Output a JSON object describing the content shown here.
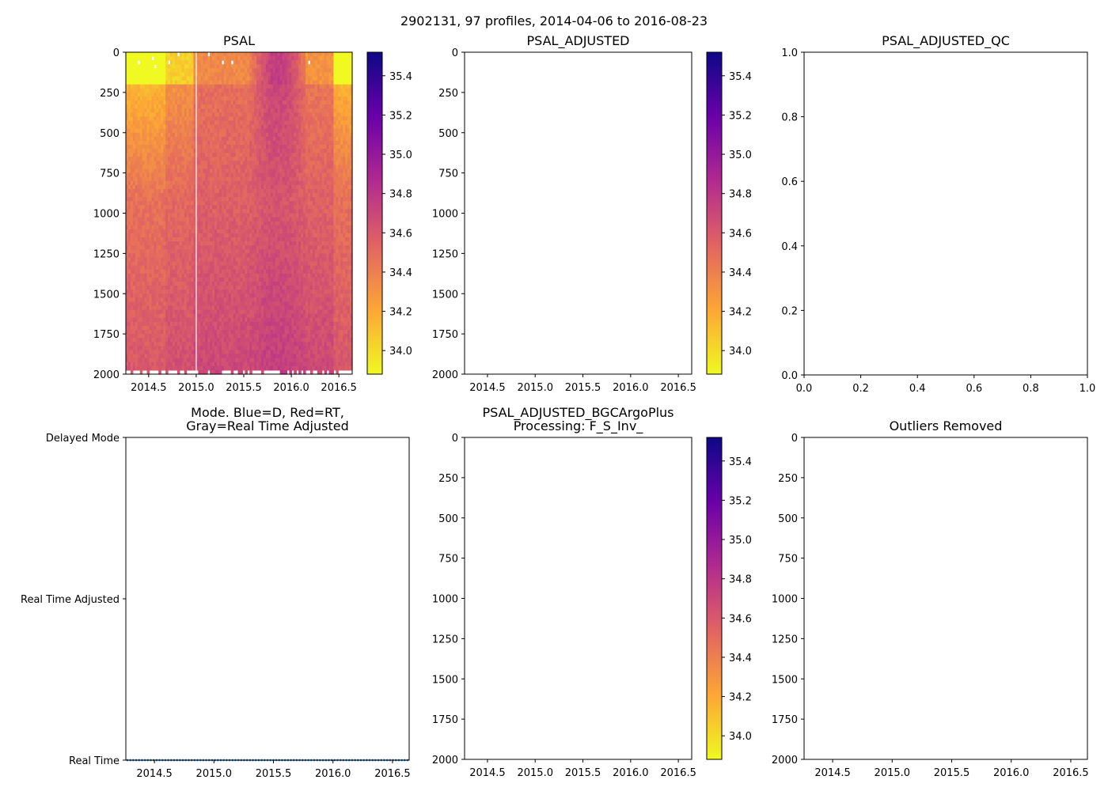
{
  "suptitle": "2902131, 97 profiles, 2014-04-06 to 2016-08-23",
  "colormap": [
    "#f0f921",
    "#fca636",
    "#e16462",
    "#b12a90",
    "#6a00a8",
    "#0d0887"
  ],
  "chart_data": [
    {
      "id": "psal",
      "type": "heatmap",
      "title": "PSAL",
      "x_range": [
        2014.26,
        2016.64
      ],
      "x_ticks": [
        "2014.5",
        "2015.0",
        "2015.5",
        "2016.0",
        "2016.5"
      ],
      "y_range": [
        0,
        2000
      ],
      "y_ticks": [
        "0",
        "250",
        "500",
        "750",
        "1000",
        "1250",
        "1500",
        "1750",
        "2000"
      ],
      "y_inverted": true,
      "profiles": 97,
      "gap_at_x": 2015.0,
      "color_range": [
        33.88,
        35.52
      ],
      "colorbar_ticks": [
        "34.0",
        "34.2",
        "34.4",
        "34.6",
        "34.8",
        "35.0",
        "35.2",
        "35.4"
      ]
    },
    {
      "id": "psal-adjusted",
      "type": "heatmap",
      "title": "PSAL_ADJUSTED",
      "x_range": [
        2014.26,
        2016.64
      ],
      "x_ticks": [
        "2014.5",
        "2015.0",
        "2015.5",
        "2016.0",
        "2016.5"
      ],
      "y_range": [
        0,
        2000
      ],
      "y_ticks": [
        "0",
        "250",
        "500",
        "750",
        "1000",
        "1250",
        "1500",
        "1750",
        "2000"
      ],
      "y_inverted": true,
      "empty": true,
      "color_range": [
        33.88,
        35.52
      ],
      "colorbar_ticks": [
        "34.0",
        "34.2",
        "34.4",
        "34.6",
        "34.8",
        "35.0",
        "35.2",
        "35.4"
      ]
    },
    {
      "id": "psal-adjusted-qc",
      "type": "scatter",
      "title": "PSAL_ADJUSTED_QC",
      "x_range": [
        0,
        1
      ],
      "x_ticks": [
        "0.0",
        "0.2",
        "0.4",
        "0.6",
        "0.8",
        "1.0"
      ],
      "y_range": [
        0,
        1
      ],
      "y_ticks": [
        "0.0",
        "0.2",
        "0.4",
        "0.6",
        "0.8",
        "1.0"
      ],
      "y_inverted": false,
      "empty": true
    },
    {
      "id": "mode",
      "type": "scatter",
      "title": "Mode. Blue=D, Red=RT,",
      "title_line2": "Gray=Real Time Adjusted",
      "x_range": [
        2014.26,
        2016.64
      ],
      "x_ticks": [
        "2014.5",
        "2015.0",
        "2015.5",
        "2016.0",
        "2016.5"
      ],
      "y_categories": [
        "Delayed Mode",
        "Real Time Adjusted",
        "Real Time"
      ],
      "points_count": 97,
      "points_category": "Real Time",
      "point_color": "#1f77b4"
    },
    {
      "id": "psal-bgc",
      "type": "heatmap",
      "title": "PSAL_ADJUSTED_BGCArgoPlus",
      "title_line2": "Processing: F_S_Inv_",
      "x_range": [
        2014.26,
        2016.64
      ],
      "x_ticks": [
        "2014.5",
        "2015.0",
        "2015.5",
        "2016.0",
        "2016.5"
      ],
      "y_range": [
        0,
        2000
      ],
      "y_ticks": [
        "0",
        "250",
        "500",
        "750",
        "1000",
        "1250",
        "1500",
        "1750",
        "2000"
      ],
      "y_inverted": true,
      "empty": true,
      "color_range": [
        33.88,
        35.52
      ],
      "colorbar_ticks": [
        "34.0",
        "34.2",
        "34.4",
        "34.6",
        "34.8",
        "35.0",
        "35.2",
        "35.4"
      ]
    },
    {
      "id": "outliers",
      "type": "scatter",
      "title": "Outliers Removed",
      "x_range": [
        2014.26,
        2016.64
      ],
      "x_ticks": [
        "2014.5",
        "2015.0",
        "2015.5",
        "2016.0",
        "2016.5"
      ],
      "y_range": [
        0,
        2000
      ],
      "y_ticks": [
        "0",
        "250",
        "500",
        "750",
        "1000",
        "1250",
        "1500",
        "1750",
        "2000"
      ],
      "y_inverted": true,
      "empty": true
    }
  ]
}
